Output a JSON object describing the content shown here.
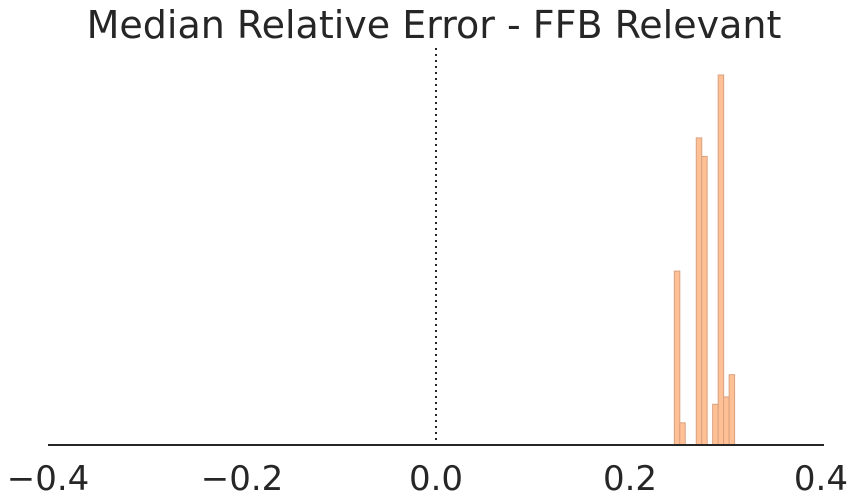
{
  "chart_data": {
    "type": "bar",
    "title": "Median Relative Error - FFB Relevant",
    "xlabel": "",
    "ylabel": "",
    "xlim": [
      -0.4,
      0.4
    ],
    "ylim": [
      0,
      1.0
    ],
    "grid": false,
    "reference_line": {
      "x": 0.0,
      "style": "dotted"
    },
    "x_ticks": [
      {
        "value": -0.4,
        "label": "−0.4"
      },
      {
        "value": -0.2,
        "label": "−0.2"
      },
      {
        "value": 0.0,
        "label": "0.0"
      },
      {
        "value": 0.2,
        "label": "0.2"
      },
      {
        "value": 0.4,
        "label": "0.4"
      }
    ],
    "bin_width": 0.00565,
    "bins": [
      {
        "x0": 0.2457,
        "count": 0.47
      },
      {
        "x0": 0.2513,
        "count": 0.06
      },
      {
        "x0": 0.257,
        "count": 0.0
      },
      {
        "x0": 0.2626,
        "count": 0.0
      },
      {
        "x0": 0.2683,
        "count": 0.83
      },
      {
        "x0": 0.2739,
        "count": 0.78
      },
      {
        "x0": 0.2796,
        "count": 0.0
      },
      {
        "x0": 0.2852,
        "count": 0.11
      },
      {
        "x0": 0.2909,
        "count": 1.0
      },
      {
        "x0": 0.2965,
        "count": 0.13
      },
      {
        "x0": 0.3022,
        "count": 0.19
      }
    ],
    "colors": {
      "bar_fill": "#ffc096",
      "bar_edge": "#d9a17f",
      "axis": "#262626"
    }
  }
}
